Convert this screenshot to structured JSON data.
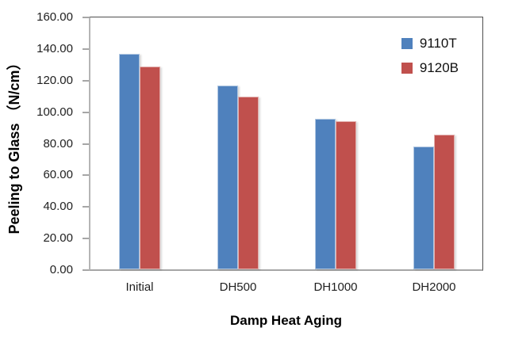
{
  "chart_data": {
    "type": "bar",
    "title": "",
    "xlabel": "Damp Heat Aging",
    "ylabel": "Peeling to Glass （N/cm）",
    "categories": [
      "Initial",
      "DH500",
      "DH1000",
      "DH2000"
    ],
    "series": [
      {
        "name": "9110T",
        "color": "#4F81BD",
        "values": [
          136.5,
          116.5,
          95.5,
          77.5
        ]
      },
      {
        "name": "9120B",
        "color": "#C0504D",
        "values": [
          128.5,
          109.5,
          94.0,
          85.5
        ]
      }
    ],
    "ylim": [
      0,
      160
    ],
    "ytick_step": 20,
    "ytick_labels": [
      "0.00",
      "20.00",
      "40.00",
      "60.00",
      "80.00",
      "100.00",
      "120.00",
      "140.00",
      "160.00"
    ],
    "grid": false,
    "legend_position": "top-right-inside",
    "axis_line_color": "#a6a6a6",
    "plot_border_color": "#4f4f4f"
  }
}
